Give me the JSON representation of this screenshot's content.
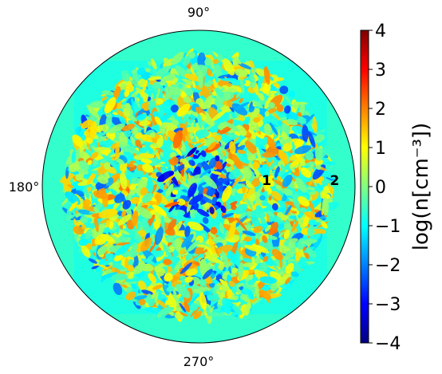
{
  "chart_data": {
    "type": "heatmap",
    "projection": "polar",
    "title": "",
    "angle_ticks": [
      {
        "value": 90,
        "label": "90°"
      },
      {
        "value": 180,
        "label": "180°"
      },
      {
        "value": 270,
        "label": "270°"
      }
    ],
    "radial_ticks": [
      {
        "value": 1,
        "label": "1"
      },
      {
        "value": 2,
        "label": "2"
      }
    ],
    "rlim": [
      0,
      2.3
    ],
    "grid": false,
    "colorbar": {
      "label": "log(n[cm⁻³])",
      "range": [
        -4,
        4
      ],
      "ticks": [
        4,
        3,
        2,
        1,
        0,
        -1,
        -2,
        -3,
        -4
      ],
      "tick_labels": [
        "4",
        "3",
        "2",
        "1",
        "0",
        "−1",
        "−2",
        "−3",
        "−4"
      ],
      "colormap": "jet",
      "colors": [
        "#00007f",
        "#0000ff",
        "#0080ff",
        "#00ffff",
        "#80ff80",
        "#ffff00",
        "#ff8000",
        "#ff0000",
        "#7f0000"
      ]
    },
    "field_description_values": {
      "background_level": -0.6,
      "disk_mean_level": 0.9,
      "disk_extent_r": 1.95
    }
  }
}
